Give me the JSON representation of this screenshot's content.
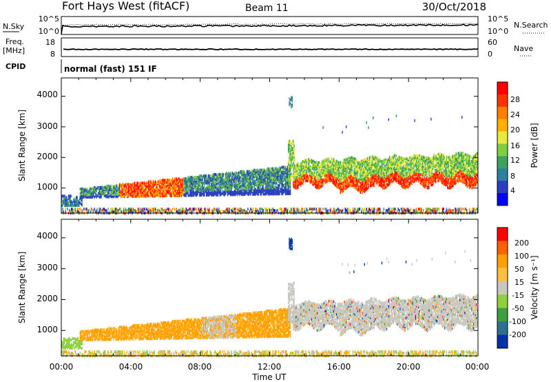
{
  "header": {
    "station": "Fort Hays West (fitACF)",
    "beam": "Beam 11",
    "date": "30/Oct/2018"
  },
  "strips": {
    "nsky_label": "N.Sky",
    "nsky_ticks": [
      "10^5",
      "10^0"
    ],
    "nsearch_label": "N.Search",
    "nsearch_ticks": [
      "10^5",
      "10^0"
    ],
    "freq_label": "Freq.",
    "freq_unit": "[MHz]",
    "freq_ticks": [
      "18",
      "8"
    ],
    "nave_label": "Nave",
    "nave_ticks": [
      "60",
      "0"
    ],
    "cpid_label": "CPID",
    "cpid_text": "normal (fast) 151 IF"
  },
  "chart_data": [
    {
      "type": "heatmap",
      "name": "Power",
      "ylabel": "Slant Range [km]",
      "y_ticks": [
        1000,
        2000,
        3000,
        4000
      ],
      "ylim": [
        180,
        4600
      ],
      "colorbar_label": "Power [dB]",
      "colorbar_ticks": [
        4,
        8,
        12,
        16,
        20,
        24,
        28
      ],
      "colorbar_range": [
        0,
        30
      ],
      "colors": [
        "#0000ff",
        "#2a3fbf",
        "#2f7f9f",
        "#3fa05f",
        "#7fcf3f",
        "#e8e840",
        "#ffb000",
        "#ff7f00",
        "#ff3300",
        "#ff0000"
      ]
    },
    {
      "type": "heatmap",
      "name": "Velocity",
      "ylabel": "Slant Range [km]",
      "y_ticks": [
        1000,
        2000,
        3000,
        4000
      ],
      "ylim": [
        180,
        4600
      ],
      "colorbar_label": "Velocity [m s⁻¹]",
      "colorbar_ticks": [
        "200",
        "100",
        "50",
        "15",
        "-15",
        "-50",
        "-100",
        "-200"
      ],
      "colors": [
        "#0033aa",
        "#2f6f8f",
        "#3f9f3f",
        "#8fd03f",
        "#c8c8c0",
        "#ffc040",
        "#ffa000",
        "#ff6000",
        "#ff0000"
      ]
    }
  ],
  "time_axis": {
    "label": "Time UT",
    "ticks": [
      "00:00",
      "04:00",
      "08:00",
      "12:00",
      "16:00",
      "20:00",
      "00:00"
    ]
  }
}
